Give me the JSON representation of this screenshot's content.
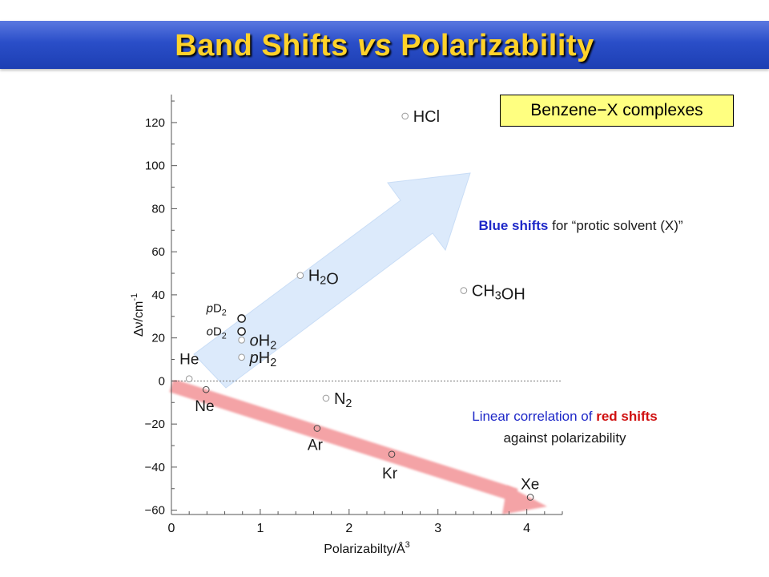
{
  "title": {
    "part1": "Band Shifts ",
    "emph": "vs",
    "part2": " Polarizability"
  },
  "legend_label": "Benzene−X complexes",
  "annotations": {
    "blue": {
      "bold": "Blue shifts",
      "rest": " for “protic solvent (X)”"
    },
    "red": {
      "line1_prefix": "Linear correlation of ",
      "line1_bold": "red shifts",
      "line2": "against polarizability"
    }
  },
  "colors": {
    "title_text": "#ffd22a",
    "title_bar": "#2a4ec8",
    "blue_arrow": "#dceafb",
    "red_arrow": "#f4a3a6",
    "legend_bg": "#ffff80",
    "blue_text": "#1e28c8",
    "red_text": "#d01010"
  },
  "chart_data": {
    "type": "scatter",
    "xlabel": "Polarizabilty/Å",
    "xlabel_sup": "3",
    "ylabel": "Δν/cm",
    "ylabel_sup": "-1",
    "xlim": [
      0,
      4.4
    ],
    "ylim": [
      -62,
      133
    ],
    "xticks": [
      {
        "v": 0,
        "label": "0"
      },
      {
        "v": 1,
        "label": "1"
      },
      {
        "v": 2,
        "label": "2"
      },
      {
        "v": 3,
        "label": "3"
      },
      {
        "v": 4,
        "label": "4"
      }
    ],
    "yticks": [
      {
        "v": -60,
        "label": "−60"
      },
      {
        "v": -40,
        "label": "−40"
      },
      {
        "v": -20,
        "label": "−20"
      },
      {
        "v": 0,
        "label": "0"
      },
      {
        "v": 20,
        "label": "20"
      },
      {
        "v": 40,
        "label": "40"
      },
      {
        "v": 60,
        "label": "60"
      },
      {
        "v": 80,
        "label": "80"
      },
      {
        "v": 100,
        "label": "100"
      },
      {
        "v": 120,
        "label": "120"
      }
    ],
    "zero_line": 0,
    "points": [
      {
        "name": "He",
        "x": 0.2,
        "y": 1,
        "marker": "small"
      },
      {
        "name": "Ne",
        "x": 0.39,
        "y": -4,
        "marker": "small-red"
      },
      {
        "name": "Ar",
        "x": 1.64,
        "y": -22,
        "marker": "small-red"
      },
      {
        "name": "Kr",
        "x": 2.48,
        "y": -34,
        "marker": "small-red"
      },
      {
        "name": "Xe",
        "x": 4.04,
        "y": -54,
        "marker": "small-red"
      },
      {
        "name": "N2",
        "x": 1.74,
        "y": -8,
        "marker": "small"
      },
      {
        "name": "pH2",
        "x": 0.79,
        "y": 11,
        "marker": "small"
      },
      {
        "name": "oH2",
        "x": 0.79,
        "y": 19,
        "marker": "small"
      },
      {
        "name": "oD2",
        "x": 0.79,
        "y": 23,
        "marker": "large"
      },
      {
        "name": "pD2",
        "x": 0.79,
        "y": 29,
        "marker": "large"
      },
      {
        "name": "H2O",
        "x": 1.45,
        "y": 49,
        "marker": "small"
      },
      {
        "name": "CH3OH",
        "x": 3.29,
        "y": 42,
        "marker": "small"
      },
      {
        "name": "HCl",
        "x": 2.63,
        "y": 123,
        "marker": "small"
      }
    ]
  }
}
